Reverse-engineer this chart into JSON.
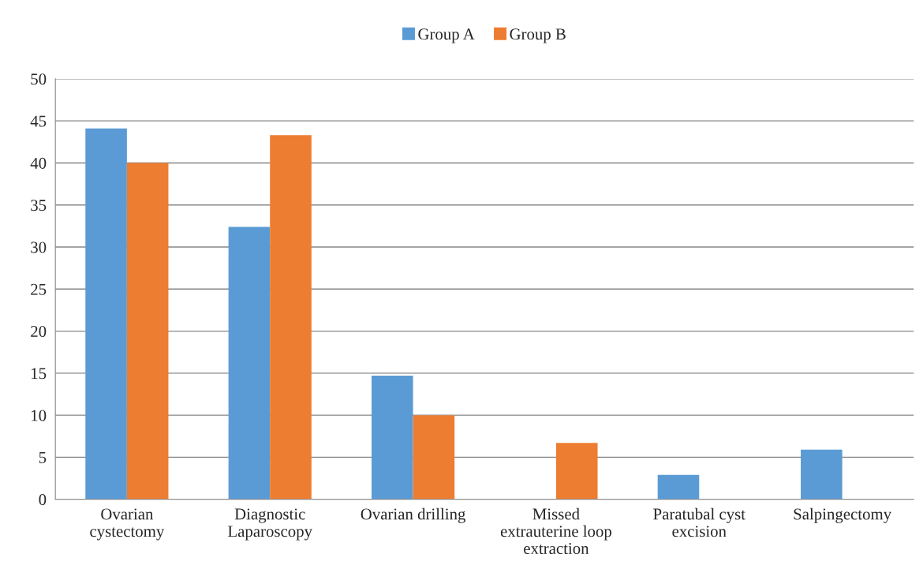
{
  "chart_data": {
    "type": "bar",
    "categories": [
      "Ovarian cystectomy",
      "Diagnostic Laparoscopy",
      "Ovarian drilling",
      "Missed extrauterine loop extraction",
      "Paratubal cyst excision",
      "Salpingectomy"
    ],
    "series": [
      {
        "name": "Group A",
        "color": "#5b9bd5",
        "values": [
          44.1,
          32.4,
          14.7,
          0,
          2.9,
          5.9
        ]
      },
      {
        "name": "Group B",
        "color": "#ed7d31",
        "values": [
          40.0,
          43.3,
          10.0,
          6.7,
          0,
          0
        ]
      }
    ],
    "ylim": [
      0,
      50
    ],
    "yticks": [
      0,
      5,
      10,
      15,
      20,
      25,
      30,
      35,
      40,
      45,
      50
    ],
    "grid": "y",
    "legend": "top"
  }
}
